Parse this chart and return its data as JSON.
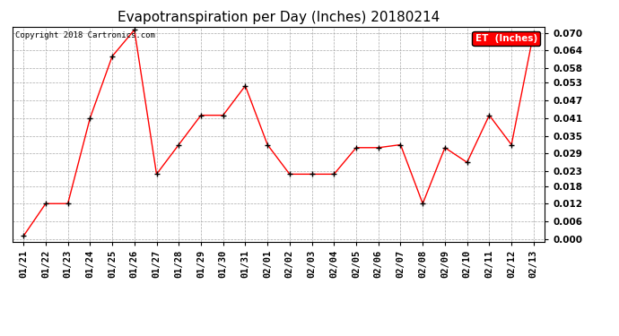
{
  "title": "Evapotranspiration per Day (Inches) 20180214",
  "copyright": "Copyright 2018 Cartronics.com",
  "legend_label": "ET  (Inches)",
  "dates": [
    "01/21",
    "01/22",
    "01/23",
    "01/24",
    "01/25",
    "01/26",
    "01/27",
    "01/28",
    "01/29",
    "01/30",
    "01/31",
    "02/01",
    "02/02",
    "02/03",
    "02/04",
    "02/05",
    "02/06",
    "02/07",
    "02/08",
    "02/09",
    "02/10",
    "02/11",
    "02/12",
    "02/13"
  ],
  "values": [
    0.001,
    0.012,
    0.012,
    0.041,
    0.062,
    0.071,
    0.022,
    0.032,
    0.042,
    0.042,
    0.052,
    0.032,
    0.022,
    0.022,
    0.022,
    0.031,
    0.031,
    0.032,
    0.012,
    0.031,
    0.026,
    0.042,
    0.032,
    0.07
  ],
  "ylim": [
    -0.001,
    0.072
  ],
  "yticks": [
    0.0,
    0.006,
    0.012,
    0.018,
    0.023,
    0.029,
    0.035,
    0.041,
    0.047,
    0.053,
    0.058,
    0.064,
    0.07
  ],
  "line_color": "red",
  "marker": "+",
  "marker_color": "black",
  "background_color": "white",
  "grid_color": "#aaaaaa",
  "title_fontsize": 11,
  "copyright_fontsize": 6.5,
  "tick_fontsize": 7.5,
  "legend_fontsize": 7.5,
  "legend_bg": "red",
  "legend_fg": "white"
}
